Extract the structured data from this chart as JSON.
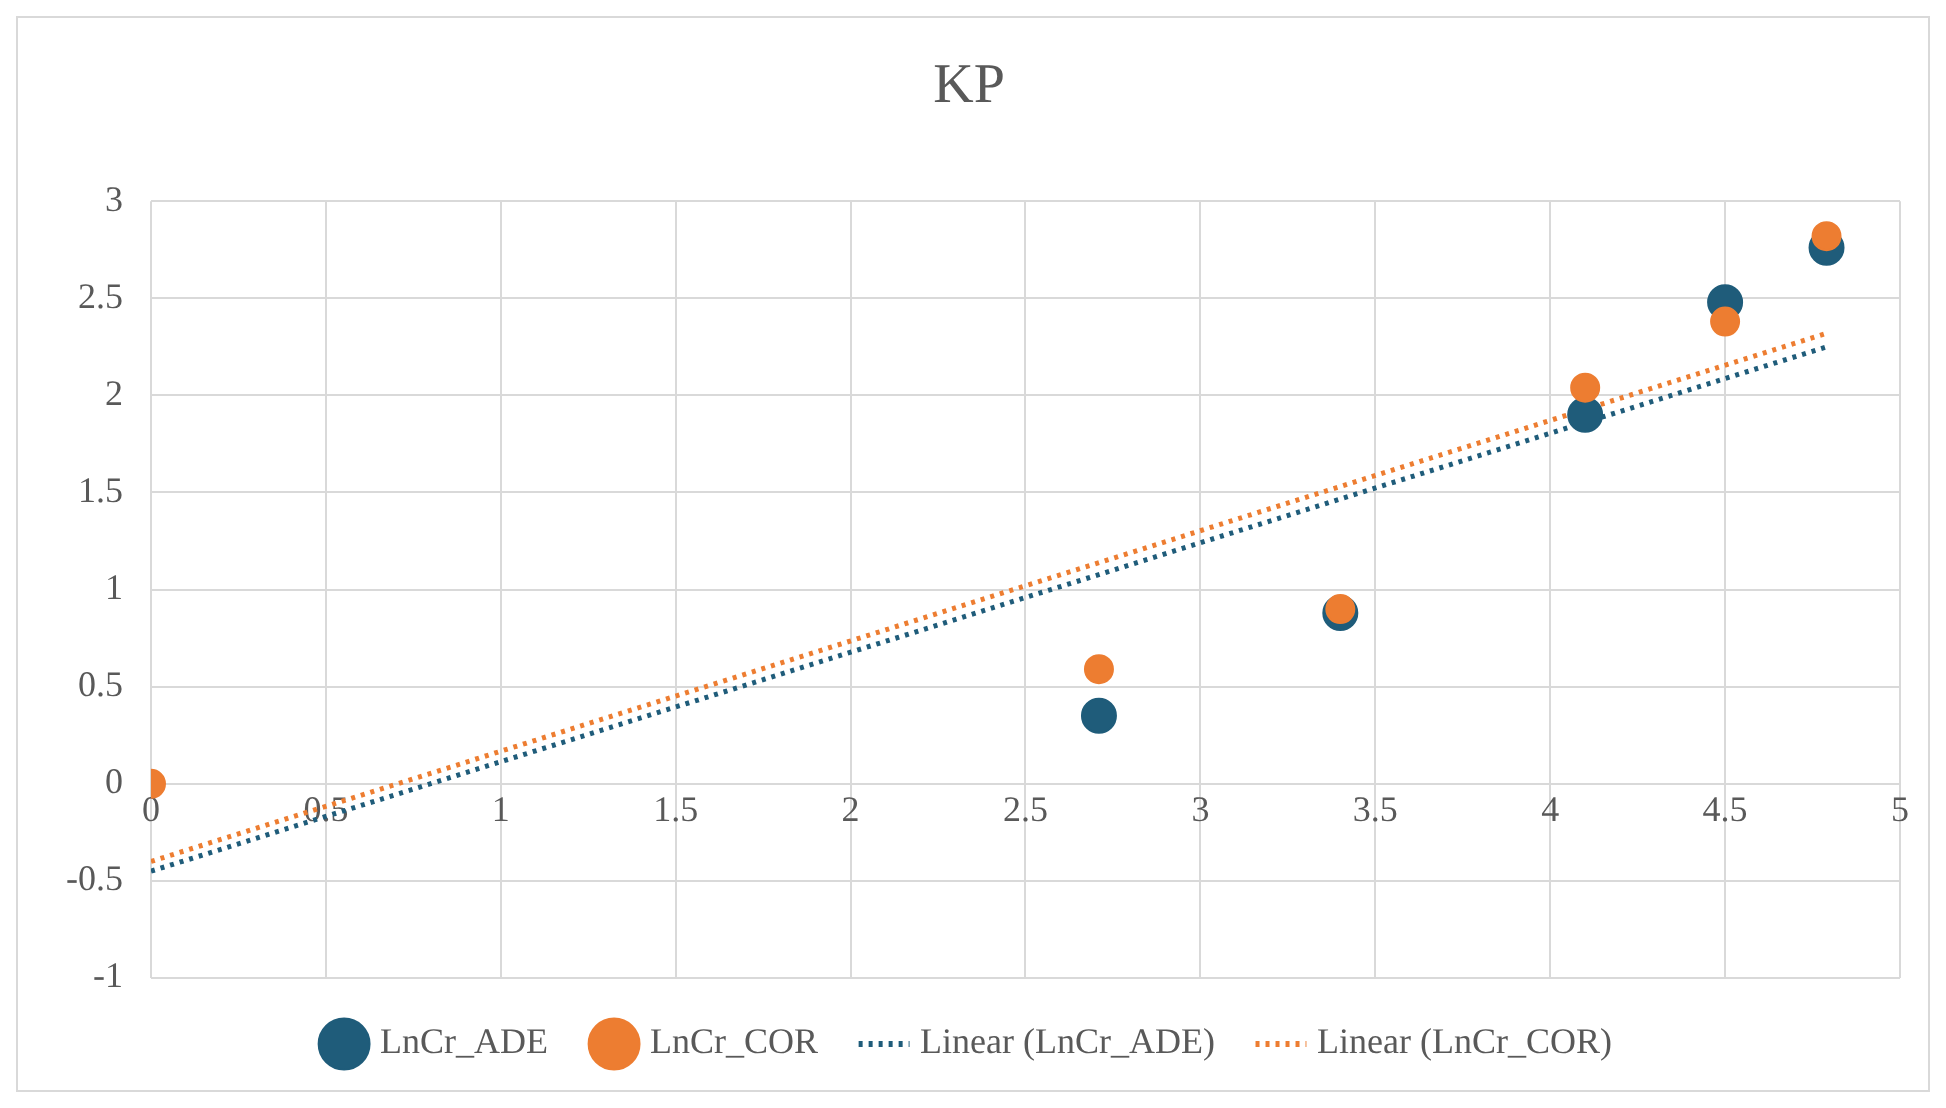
{
  "chart_data": {
    "type": "scatter",
    "title": "KP",
    "xlim": [
      0,
      5
    ],
    "xticks": [
      0,
      0.5,
      1,
      1.5,
      2,
      2.5,
      3,
      3.5,
      4,
      4.5,
      5
    ],
    "ylim": [
      -1,
      3
    ],
    "yticks": [
      -1,
      -0.5,
      0,
      0.5,
      1,
      1.5,
      2,
      2.5,
      3
    ],
    "grid": true,
    "legend": "bottom",
    "marker": "circle",
    "series": [
      {
        "name": "LnCr_ADE",
        "color": "#1f5c7a",
        "x": [
          2.71,
          3.4,
          4.1,
          4.5,
          4.79
        ],
        "values": [
          0.35,
          0.88,
          1.9,
          2.48,
          2.76
        ]
      },
      {
        "name": "LnCr_COR",
        "color": "#ed7d31",
        "x": [
          0,
          2.71,
          3.4,
          4.1,
          4.5,
          4.79
        ],
        "values": [
          0,
          0.59,
          0.9,
          2.04,
          2.38,
          2.82
        ]
      },
      {
        "name": "Linear (LnCr_ADE)",
        "type": "line",
        "color": "#1f5c7a",
        "line_style": "dotted",
        "marker": "none",
        "x": [
          0,
          4.79
        ],
        "values": [
          -0.45,
          2.25
        ]
      },
      {
        "name": "Linear (LnCr_COR)",
        "type": "line",
        "color": "#ed7d31",
        "line_style": "dotted",
        "marker": "none",
        "x": [
          0,
          4.79
        ],
        "values": [
          -0.4,
          2.32
        ]
      }
    ]
  }
}
